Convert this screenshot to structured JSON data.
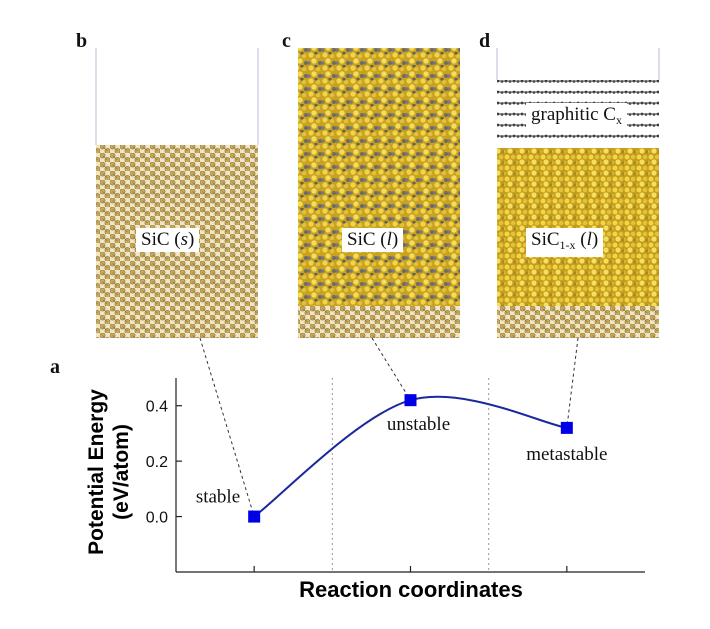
{
  "panels": {
    "b": {
      "letter": "b",
      "label_main": "SiC (",
      "label_phase": "s",
      "label_close": ")"
    },
    "c": {
      "letter": "c",
      "label_main": "SiC (",
      "label_phase": "l",
      "label_close": ")"
    },
    "d": {
      "letter": "d",
      "top_label_main": "graphitic C",
      "top_label_sub": "x",
      "label_main": "SiC",
      "label_sub": "1-x",
      "label_open": " (",
      "label_phase": "l",
      "label_close": ")"
    }
  },
  "colors": {
    "curve": "#1b2a9b",
    "marker": "#0000e6",
    "lattice": "#c4a55a",
    "liquid_si": "#d9b92a",
    "liquid_c": "#6e6e6e",
    "graphite": "#555555",
    "axis": "#222222",
    "divider": "#9a9a9a"
  },
  "chart_data": {
    "type": "line",
    "panel_letter": "a",
    "xlabel": "Reaction coordinates",
    "ylabel_line1": "Potential Energy",
    "ylabel_line2": "(eV/atom)",
    "ylim": [
      -0.2,
      0.5
    ],
    "yticks": [
      "0.0",
      "0.2",
      "0.4"
    ],
    "ytick_values": [
      0.0,
      0.2,
      0.4
    ],
    "x": [
      1,
      2,
      3
    ],
    "points": [
      {
        "x": 1,
        "y": 0.0,
        "label": "stable"
      },
      {
        "x": 2,
        "y": 0.42,
        "label": "unstable"
      },
      {
        "x": 3,
        "y": 0.32,
        "label": "metastable"
      }
    ],
    "xlim": [
      0.5,
      3.5
    ],
    "dividers_x": [
      1.5,
      2.5
    ],
    "grid": false,
    "legend": "none"
  }
}
